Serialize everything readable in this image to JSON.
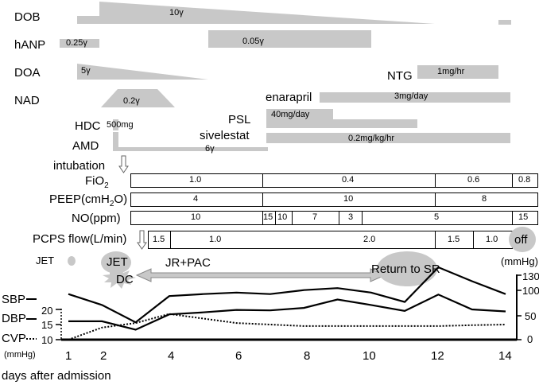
{
  "drugs": {
    "dob": {
      "label": "DOB",
      "dose": "10γ"
    },
    "hanp": {
      "label": "hANP",
      "dose1": "0.25γ",
      "dose2": "0.05γ"
    },
    "doa": {
      "label": "DOA",
      "dose": "5γ"
    },
    "nad": {
      "label": "NAD",
      "dose": "0.2γ"
    },
    "ntg": {
      "label": "NTG",
      "dose": "1mg/hr"
    },
    "enalapril": {
      "label": "enarapril",
      "dose": "3mg/day"
    },
    "psl": {
      "label": "PSL",
      "dose": "40mg/day"
    },
    "hdc": {
      "label": "HDC",
      "dose": "500mg"
    },
    "sivelestat": {
      "label": "sivelestat",
      "dose": "0.2mg/kg/hr"
    },
    "amd": {
      "label": "AMD",
      "dose": "6γ"
    }
  },
  "events": {
    "intubation": "intubation",
    "jet1": "JET",
    "jet2": "JET",
    "dc": "DC",
    "jr_pac": "JR+PAC",
    "return_sr": "Return to SR",
    "off": "off"
  },
  "rows": {
    "fio2": {
      "label_main": "FiO",
      "label_sub": "2",
      "values": [
        "1.0",
        "0.4",
        "0.6",
        "0.8"
      ]
    },
    "peep": {
      "label_a": "PEEP(cmH",
      "label_sub": "2",
      "label_b": "O)",
      "values": [
        "4",
        "10",
        "8"
      ]
    },
    "no": {
      "label": "NO(ppm)",
      "values": [
        "10",
        "15",
        "10",
        "7",
        "3",
        "5",
        "15"
      ]
    },
    "pcps": {
      "label": "PCPS flow(L/min)",
      "values": [
        "1.5",
        "1.0",
        "2.0",
        "1.5",
        "1.0"
      ]
    }
  },
  "vitals": {
    "labels": {
      "sbp": "SBP",
      "dbp": "DBP",
      "cvp": "CVP"
    },
    "left_axis": {
      "ticks": [
        "20",
        "15",
        "10"
      ],
      "unit": "(mmHg)"
    },
    "right_axis": {
      "ticks": [
        "130",
        "100",
        "50",
        "0"
      ],
      "unit": "(mmHg)"
    },
    "x_axis": {
      "ticks": [
        "1",
        "2",
        "4",
        "6",
        "8",
        "10",
        "12",
        "14"
      ],
      "label": "days after admission"
    }
  },
  "chart_data": {
    "type": "line",
    "xlabel": "days after admission",
    "x_ticks": [
      1,
      2,
      4,
      6,
      8,
      10,
      12,
      14
    ],
    "right_axis_range": [
      0,
      130
    ],
    "left_axis_range": [
      10,
      20
    ],
    "series": [
      {
        "name": "SBP",
        "axis": "right",
        "x": [
          1,
          2,
          3,
          4,
          5,
          6,
          7,
          8,
          9,
          10,
          11,
          12,
          13,
          14
        ],
        "values": [
          92,
          70,
          35,
          88,
          92,
          95,
          92,
          100,
          104,
          95,
          76,
          146,
          118,
          92
        ]
      },
      {
        "name": "DBP",
        "axis": "right",
        "x": [
          1,
          2,
          3,
          4,
          5,
          6,
          7,
          8,
          9,
          10,
          11,
          12,
          13,
          14
        ],
        "values": [
          37,
          37,
          20,
          51,
          55,
          60,
          59,
          64,
          81,
          70,
          58,
          91,
          61,
          57
        ]
      },
      {
        "name": "CVP",
        "axis": "left",
        "x": [
          1,
          2,
          3,
          4,
          5,
          6,
          7,
          8,
          9,
          10,
          11,
          12,
          13,
          14
        ],
        "values": [
          10,
          14,
          15.5,
          18.5,
          17,
          15.5,
          15,
          14.5,
          14.5,
          14.5,
          14.5,
          14.5,
          14.8,
          15
        ]
      }
    ]
  }
}
